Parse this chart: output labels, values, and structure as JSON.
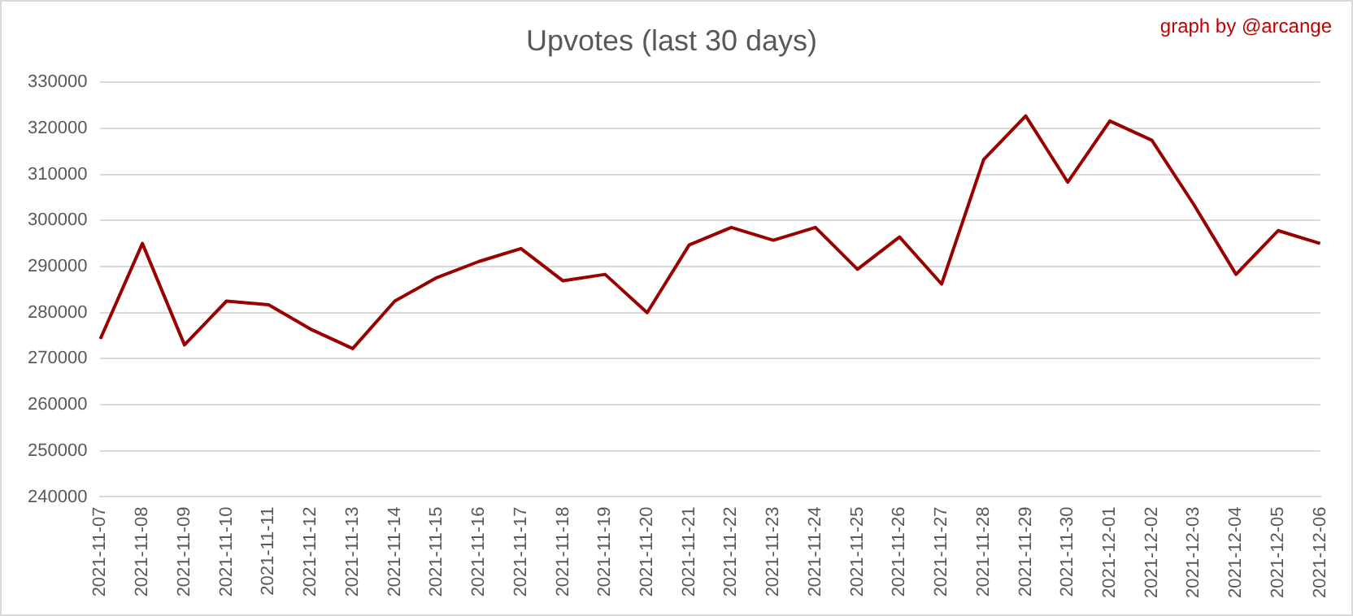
{
  "chart_data": {
    "type": "line",
    "title": "Upvotes (last 30 days)",
    "annotations": [
      "graph by @arcange"
    ],
    "categories": [
      "2021-11-07",
      "2021-11-08",
      "2021-11-09",
      "2021-11-10",
      "2021-11-11",
      "2021-11-12",
      "2021-11-13",
      "2021-11-14",
      "2021-11-15",
      "2021-11-16",
      "2021-11-17",
      "2021-11-18",
      "2021-11-19",
      "2021-11-20",
      "2021-11-21",
      "2021-11-22",
      "2021-11-23",
      "2021-11-24",
      "2021-11-25",
      "2021-11-26",
      "2021-11-27",
      "2021-11-28",
      "2021-11-29",
      "2021-11-30",
      "2021-12-01",
      "2021-12-02",
      "2021-12-03",
      "2021-12-04",
      "2021-12-05",
      "2021-12-06"
    ],
    "series": [
      {
        "color": "#990000",
        "values": [
          274300,
          295000,
          273000,
          282500,
          281700,
          276400,
          272200,
          282500,
          287600,
          291100,
          293900,
          286900,
          288300,
          280000,
          294700,
          298500,
          295700,
          298500,
          289400,
          296400,
          286200,
          313200,
          322700,
          308300,
          321600,
          317400,
          303400,
          288300,
          297800,
          295000
        ]
      }
    ],
    "ylim": [
      240000,
      330000
    ],
    "yticks": [
      240000,
      250000,
      260000,
      270000,
      280000,
      290000,
      300000,
      310000,
      320000,
      330000
    ],
    "grid": "y",
    "legend": false,
    "marker": "none",
    "line_style": "solid"
  }
}
